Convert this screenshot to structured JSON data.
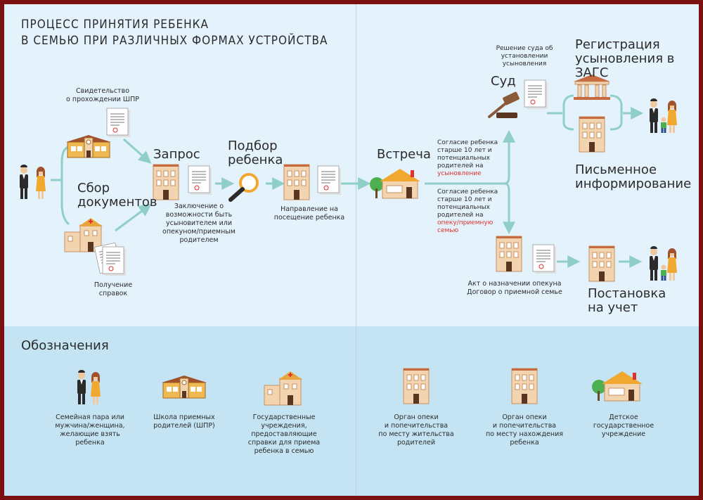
{
  "title": {
    "line1": "ПРОЦЕСС ПРИНЯТИЯ РЕБЕНКА",
    "line2": "В СЕМЬЮ ПРИ РАЗЛИЧНЫХ ФОРМАХ УСТРОЙСТВА"
  },
  "steps": {
    "collect": {
      "line1": "Сбор",
      "line2": "документов"
    },
    "request": "Запрос",
    "selection": {
      "line1": "Подбор",
      "line2": "ребенка"
    },
    "meeting": "Встреча",
    "court": "Суд",
    "registration": {
      "line1": "Регистрация",
      "line2": "усыновления в ЗАГС"
    },
    "written": {
      "line1": "Письменное",
      "line2": "информирование"
    },
    "register": {
      "line1": "Постановка",
      "line2": "на учет"
    }
  },
  "notes": {
    "certificate": {
      "line1": "Свидетельство",
      "line2": "о прохождении ШПР"
    },
    "conclusion": {
      "line1": "Заключение о",
      "line2": "возможности быть",
      "line3": "усыновителем или",
      "line4": "опекуном/приемным",
      "line5": "родителем"
    },
    "referral": {
      "line1": "Направление на",
      "line2": "посещение ребенка"
    },
    "certs": {
      "line1": "Получение",
      "line2": "справок"
    },
    "court_decision": {
      "line1": "Решение суда об",
      "line2": "установлении",
      "line3": "усыновления"
    },
    "consent_adopt": {
      "line1": "Согласие ребенка",
      "line2": "старше 10 лет и",
      "line3": "потенциальных",
      "line4": "родителей на",
      "highlight": "усыновление"
    },
    "consent_foster": {
      "line1": "Согласие ребенка",
      "line2": "старше 10 лет и",
      "line3": "потенциальных",
      "line4": "родителей на",
      "highlight1": "опеку/приемную",
      "highlight2": "семью"
    },
    "act": {
      "line1": "Акт о назначении опекуна",
      "line2": "Договор о приемной семье"
    }
  },
  "legend": {
    "title": "Обозначения",
    "family": {
      "line1": "Семейная пара или",
      "line2": "мужчина/женщина,",
      "line3": "желающие взять",
      "line4": "ребенка"
    },
    "school": {
      "line1": "Школа приемных",
      "line2": "родителей (ШПР)"
    },
    "gov": {
      "line1": "Государственные",
      "line2": "учреждения,",
      "line3": "предоставляющие",
      "line4": "справки для приема",
      "line5": "ребенка в семью"
    },
    "guardian_home": {
      "line1": "Орган опеки",
      "line2": "и попечительства",
      "line3": "по месту жительства",
      "line4": "родителей"
    },
    "guardian_child": {
      "line1": "Орган опеки",
      "line2": "и попечительства",
      "line3": "по месту нахождения",
      "line4": "ребенка"
    },
    "orphanage": {
      "line1": "Детское",
      "line2": "государственное",
      "line3": "учреждение"
    }
  },
  "colors": {
    "frame": "#7a1010",
    "background": "#e4f2fb",
    "legend_background": "#c4e4f4",
    "flow": "#8fcfc8",
    "building": "#f2d4b0",
    "roof_orange": "#e8a53c",
    "accent_red": "#e0312c"
  }
}
